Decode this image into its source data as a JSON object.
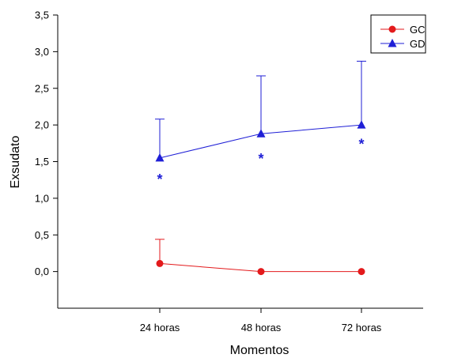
{
  "chart_data": {
    "type": "line",
    "xlabel": "Momentos",
    "ylabel": "Exsudato",
    "categories": [
      "24 horas",
      "48 horas",
      "72 horas"
    ],
    "ylim": [
      -0.5,
      3.5
    ],
    "yticks": [
      "0,0",
      "0,5",
      "1,0",
      "1,5",
      "2,0",
      "2,5",
      "3,0",
      "3,5"
    ],
    "ytick_values": [
      0,
      0.5,
      1.0,
      1.5,
      2.0,
      2.5,
      3.0,
      3.5
    ],
    "grid": false,
    "legend": "top-right",
    "series": [
      {
        "name": "GC",
        "marker": "circle",
        "color": "#e31a1c",
        "values": [
          0.11,
          0.0,
          0.0
        ],
        "error_upper": [
          0.33,
          0.0,
          0.0
        ]
      },
      {
        "name": "GD",
        "marker": "triangle",
        "color": "#1f1fd6",
        "values": [
          1.55,
          1.88,
          2.0
        ],
        "error_upper": [
          0.53,
          0.79,
          0.87
        ]
      }
    ],
    "annotations": [
      {
        "text": "*",
        "category": "24 horas",
        "y": 1.32
      },
      {
        "text": "*",
        "category": "48 horas",
        "y": 1.6
      },
      {
        "text": "*",
        "category": "72 horas",
        "y": 1.8
      }
    ]
  }
}
